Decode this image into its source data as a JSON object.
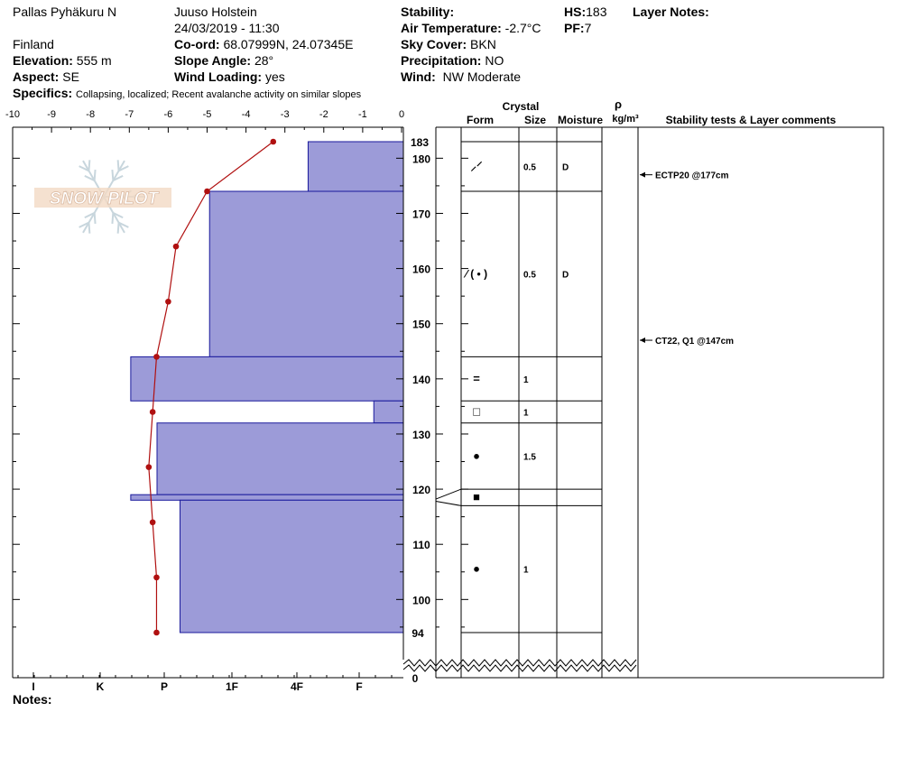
{
  "header": {
    "location": "Pallas Pyhäkuru N",
    "country": "Finland",
    "elevation_label": "Elevation:",
    "elevation": "555 m",
    "aspect_label": "Aspect:",
    "aspect": "SE",
    "observer": "Juuso Holstein",
    "datetime": "24/03/2019 - 11:30",
    "coord_label": "Co-ord:",
    "coord": "68.07999N, 24.07345E",
    "slope_label": "Slope Angle:",
    "slope": "28°",
    "wind_loading_label": "Wind Loading:",
    "wind_loading": "yes",
    "stability_label": "Stability:",
    "stability": "",
    "air_temp_label": "Air Temperature:",
    "air_temp": "-2.7°C",
    "sky_label": "Sky Cover:",
    "sky": "BKN",
    "precip_label": "Precipitation:",
    "precip": "NO",
    "wind_label": "Wind:",
    "wind": "NW Moderate",
    "hs_label": "HS:",
    "hs": "183",
    "pf_label": "PF:",
    "pf": "7",
    "layer_notes_label": "Layer Notes:",
    "specifics_label": "Specifics:",
    "specifics": "Collapsing, localized;  Recent avalanche activity on similar slopes",
    "notes_label": "Notes:"
  },
  "watermark": "SNOW PILOT",
  "columns": {
    "crystal": "Crystal",
    "form": "Form",
    "size": "Size",
    "moisture": "Moisture",
    "rho": "ρ",
    "density": "kg/m³",
    "comments": "Stability tests & Layer comments"
  },
  "chart_data": {
    "type": "snow-profile",
    "temperature_axis": {
      "min": -10,
      "max": 0,
      "ticks": [
        "-10",
        "-9",
        "-8",
        "-7",
        "-6",
        "-5",
        "-4",
        "-3",
        "-2",
        "-1",
        "0"
      ]
    },
    "height_axis": {
      "min": 0,
      "max": 183,
      "tick_values": [
        180,
        170,
        160,
        150,
        140,
        130,
        120,
        110,
        100
      ],
      "top_label": "183",
      "bottom_label": "94",
      "zero_label": "0"
    },
    "hardness_scale": [
      "I",
      "K",
      "P",
      "1F",
      "4F",
      "F"
    ],
    "hardness_layers": [
      {
        "top": 183,
        "bottom": 174,
        "hardness": 1.45
      },
      {
        "top": 174,
        "bottom": 144,
        "hardness": 2.95
      },
      {
        "top": 144,
        "bottom": 136,
        "hardness": 4.15
      },
      {
        "top": 136,
        "bottom": 132,
        "hardness": 0.45
      },
      {
        "top": 132,
        "bottom": 119,
        "hardness": 3.75
      },
      {
        "top": 119,
        "bottom": 118,
        "hardness": 4.15
      },
      {
        "top": 118,
        "bottom": 94,
        "hardness": 3.4
      }
    ],
    "temperature_profile": [
      {
        "height": 183,
        "temp": -3.3
      },
      {
        "height": 174,
        "temp": -5.0
      },
      {
        "height": 164,
        "temp": -5.8
      },
      {
        "height": 154,
        "temp": -6.0
      },
      {
        "height": 144,
        "temp": -6.3
      },
      {
        "height": 134,
        "temp": -6.4
      },
      {
        "height": 124,
        "temp": -6.5
      },
      {
        "height": 114,
        "temp": -6.4
      },
      {
        "height": 104,
        "temp": -6.3
      },
      {
        "height": 94,
        "temp": -6.3
      }
    ],
    "layers": [
      {
        "top": 183,
        "bottom": 174,
        "form": "⸝⸍",
        "size": "0.5",
        "moisture": "D"
      },
      {
        "top": 174,
        "bottom": 144,
        "form": "⁄ ( • )",
        "size": "0.5",
        "moisture": "D"
      },
      {
        "top": 144,
        "bottom": 136,
        "form": "=",
        "size": "1",
        "moisture": ""
      },
      {
        "top": 136,
        "bottom": 132,
        "form": "□",
        "size": "1",
        "moisture": ""
      },
      {
        "top": 132,
        "bottom": 120,
        "form": "●",
        "size": "1.5",
        "moisture": ""
      },
      {
        "top": 120,
        "bottom": 117,
        "form": "■",
        "size": "",
        "moisture": ""
      },
      {
        "top": 117,
        "bottom": 94,
        "form": "●",
        "size": "1",
        "moisture": ""
      }
    ],
    "stability_tests": [
      {
        "height": 177,
        "label": "ECTP20 @177cm"
      },
      {
        "height": 147,
        "label": "CT22, Q1 @147cm"
      }
    ]
  }
}
